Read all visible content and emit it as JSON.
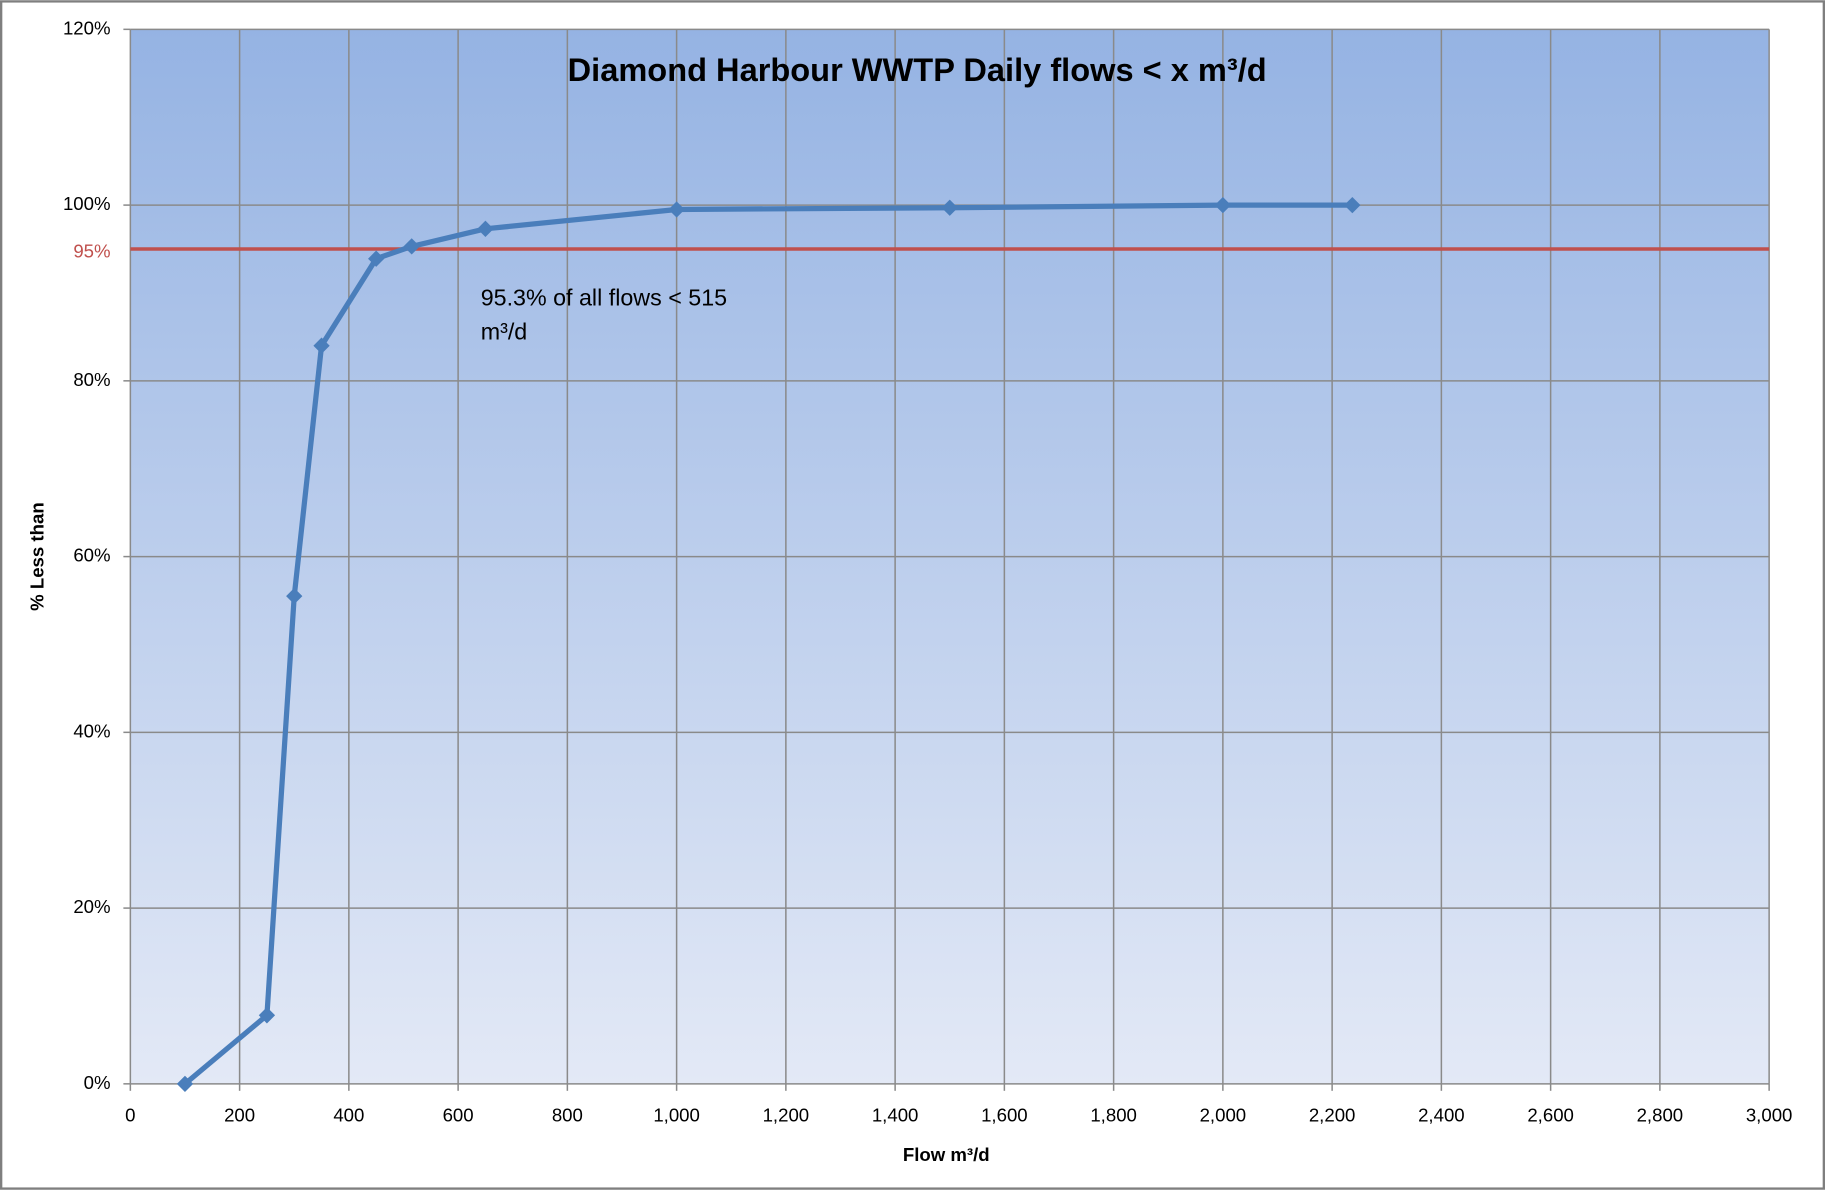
{
  "chart_data": {
    "type": "line",
    "title": "Diamond Harbour WWTP Daily flows < x m³/d",
    "x_label": "Flow m³/d",
    "y_label": "% Less than",
    "x": [
      100,
      250,
      300,
      350,
      450,
      515,
      650,
      1000,
      1500,
      2000,
      2237
    ],
    "series": [
      {
        "name": "% Less than",
        "color": "#4a7ebb",
        "values": [
          0,
          7.8,
          55.5,
          84,
          93.9,
          95.3,
          97.3,
          99.5,
          99.7,
          100,
          100
        ]
      }
    ],
    "xlim": [
      0,
      3000
    ],
    "xticks": [
      0,
      200,
      400,
      600,
      800,
      {
        "value": 1000,
        "label": "1,000"
      },
      {
        "value": 1200,
        "label": "1,200"
      },
      {
        "value": 1400,
        "label": "1,400"
      },
      {
        "value": 1600,
        "label": "1,600"
      },
      {
        "value": 1800,
        "label": "1,800"
      },
      {
        "value": 2000,
        "label": "2,000"
      },
      {
        "value": 2200,
        "label": "2,200"
      },
      {
        "value": 2400,
        "label": "2,400"
      },
      {
        "value": 2600,
        "label": "2,600"
      },
      {
        "value": 2800,
        "label": "2,800"
      },
      {
        "value": 3000,
        "label": "3,000"
      }
    ],
    "ylim": [
      0,
      120
    ],
    "yticks": [
      {
        "value": 0,
        "label": "0%"
      },
      {
        "value": 20,
        "label": "20%"
      },
      {
        "value": 40,
        "label": "40%"
      },
      {
        "value": 60,
        "label": "60%"
      },
      {
        "value": 80,
        "label": "80%"
      },
      {
        "value": 100,
        "label": "100%"
      },
      {
        "value": 120,
        "label": "120%"
      }
    ],
    "grid": true,
    "reference_line": {
      "value": 95,
      "label": "95%",
      "color": "#c0504d"
    },
    "annotation": [
      "95.3% of all flows < 515",
      "m³/d"
    ]
  }
}
